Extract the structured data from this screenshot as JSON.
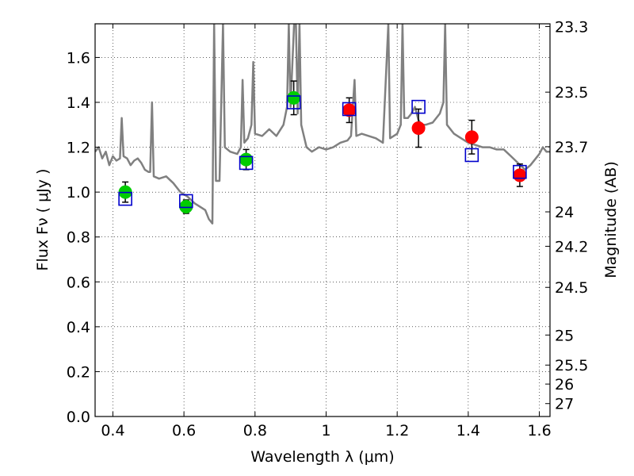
{
  "chart_data": {
    "type": "scatter",
    "xlabel": "Wavelength  λ (μm)",
    "ylabel": "Flux  Fν  ( μJy )",
    "y2label": "Magnitude (AB)",
    "xlim": [
      0.35,
      1.63
    ],
    "ylim": [
      0.0,
      1.75
    ],
    "grid": true,
    "x_ticks": [
      0.4,
      0.6,
      0.8,
      1.0,
      1.2,
      1.4,
      1.6
    ],
    "x_tick_labels": [
      "0.4",
      "0.6",
      "0.8",
      "1",
      "1.2",
      "1.4",
      "1.6"
    ],
    "y_ticks": [
      0.0,
      0.2,
      0.4,
      0.6,
      0.8,
      1.0,
      1.2,
      1.4,
      1.6
    ],
    "y_tick_labels": [
      "0.0",
      "0.2",
      "0.4",
      "0.6",
      "0.8",
      "1.0",
      "1.2",
      "1.4",
      "1.6"
    ],
    "y2_ticks": [
      23.3,
      23.5,
      23.7,
      24,
      24.2,
      24.5,
      25,
      25.5,
      26,
      27
    ],
    "y2_tick_labels": [
      "23.3",
      "23.5",
      "23.7",
      "24",
      "24.2",
      "24.5",
      "25",
      "25.5",
      "26",
      "27"
    ],
    "series": [
      {
        "marker": "circle",
        "color": "#00cc00",
        "points": [
          {
            "x": 0.435,
            "y": 1.0,
            "err": 0.045
          },
          {
            "x": 0.606,
            "y": 0.935,
            "err": 0.03
          },
          {
            "x": 0.775,
            "y": 1.145,
            "err": 0.045
          },
          {
            "x": 0.909,
            "y": 1.42,
            "err": 0.075
          }
        ]
      },
      {
        "marker": "circle",
        "color": "#ff0000",
        "points": [
          {
            "x": 1.065,
            "y": 1.365,
            "err": 0.055
          },
          {
            "x": 1.26,
            "y": 1.285,
            "err": 0.085
          },
          {
            "x": 1.41,
            "y": 1.245,
            "err": 0.075
          },
          {
            "x": 1.545,
            "y": 1.075,
            "err": 0.05
          }
        ]
      },
      {
        "marker": "square",
        "color": "#0000cc",
        "points": [
          {
            "x": 0.435,
            "y": 0.97
          },
          {
            "x": 0.606,
            "y": 0.96
          },
          {
            "x": 0.775,
            "y": 1.13
          },
          {
            "x": 0.909,
            "y": 1.4
          },
          {
            "x": 1.065,
            "y": 1.37
          },
          {
            "x": 1.26,
            "y": 1.38
          },
          {
            "x": 1.41,
            "y": 1.165
          },
          {
            "x": 1.545,
            "y": 1.09
          }
        ]
      },
      {
        "marker": "line",
        "color": "#808080",
        "points": [
          {
            "x": 0.35,
            "y": 1.18
          },
          {
            "x": 0.36,
            "y": 1.2
          },
          {
            "x": 0.37,
            "y": 1.15
          },
          {
            "x": 0.38,
            "y": 1.18
          },
          {
            "x": 0.39,
            "y": 1.12
          },
          {
            "x": 0.4,
            "y": 1.16
          },
          {
            "x": 0.41,
            "y": 1.14
          },
          {
            "x": 0.42,
            "y": 1.15
          },
          {
            "x": 0.425,
            "y": 1.33
          },
          {
            "x": 0.43,
            "y": 1.16
          },
          {
            "x": 0.44,
            "y": 1.15
          },
          {
            "x": 0.45,
            "y": 1.12
          },
          {
            "x": 0.46,
            "y": 1.14
          },
          {
            "x": 0.47,
            "y": 1.15
          },
          {
            "x": 0.48,
            "y": 1.13
          },
          {
            "x": 0.49,
            "y": 1.1
          },
          {
            "x": 0.5,
            "y": 1.09
          },
          {
            "x": 0.505,
            "y": 1.09
          },
          {
            "x": 0.51,
            "y": 1.4
          },
          {
            "x": 0.515,
            "y": 1.07
          },
          {
            "x": 0.53,
            "y": 1.06
          },
          {
            "x": 0.55,
            "y": 1.07
          },
          {
            "x": 0.57,
            "y": 1.04
          },
          {
            "x": 0.59,
            "y": 1.0
          },
          {
            "x": 0.61,
            "y": 0.98
          },
          {
            "x": 0.63,
            "y": 0.95
          },
          {
            "x": 0.65,
            "y": 0.93
          },
          {
            "x": 0.66,
            "y": 0.92
          },
          {
            "x": 0.67,
            "y": 0.88
          },
          {
            "x": 0.68,
            "y": 0.86
          },
          {
            "x": 0.685,
            "y": 1.75
          },
          {
            "x": 0.69,
            "y": 1.05
          },
          {
            "x": 0.7,
            "y": 1.05
          },
          {
            "x": 0.71,
            "y": 1.75
          },
          {
            "x": 0.715,
            "y": 1.2
          },
          {
            "x": 0.73,
            "y": 1.18
          },
          {
            "x": 0.75,
            "y": 1.17
          },
          {
            "x": 0.76,
            "y": 1.2
          },
          {
            "x": 0.765,
            "y": 1.5
          },
          {
            "x": 0.77,
            "y": 1.22
          },
          {
            "x": 0.78,
            "y": 1.24
          },
          {
            "x": 0.79,
            "y": 1.3
          },
          {
            "x": 0.795,
            "y": 1.58
          },
          {
            "x": 0.8,
            "y": 1.26
          },
          {
            "x": 0.82,
            "y": 1.25
          },
          {
            "x": 0.84,
            "y": 1.28
          },
          {
            "x": 0.86,
            "y": 1.25
          },
          {
            "x": 0.88,
            "y": 1.3
          },
          {
            "x": 0.89,
            "y": 1.38
          },
          {
            "x": 0.895,
            "y": 1.75
          },
          {
            "x": 0.9,
            "y": 1.38
          },
          {
            "x": 0.91,
            "y": 1.75
          },
          {
            "x": 0.915,
            "y": 1.75
          },
          {
            "x": 0.92,
            "y": 1.35
          },
          {
            "x": 0.925,
            "y": 1.75
          },
          {
            "x": 0.93,
            "y": 1.3
          },
          {
            "x": 0.945,
            "y": 1.2
          },
          {
            "x": 0.96,
            "y": 1.18
          },
          {
            "x": 0.98,
            "y": 1.2
          },
          {
            "x": 1.0,
            "y": 1.19
          },
          {
            "x": 1.02,
            "y": 1.2
          },
          {
            "x": 1.04,
            "y": 1.22
          },
          {
            "x": 1.06,
            "y": 1.23
          },
          {
            "x": 1.07,
            "y": 1.25
          },
          {
            "x": 1.08,
            "y": 1.5
          },
          {
            "x": 1.085,
            "y": 1.25
          },
          {
            "x": 1.1,
            "y": 1.26
          },
          {
            "x": 1.12,
            "y": 1.25
          },
          {
            "x": 1.14,
            "y": 1.24
          },
          {
            "x": 1.16,
            "y": 1.22
          },
          {
            "x": 1.175,
            "y": 1.75
          },
          {
            "x": 1.18,
            "y": 1.24
          },
          {
            "x": 1.2,
            "y": 1.26
          },
          {
            "x": 1.21,
            "y": 1.3
          },
          {
            "x": 1.215,
            "y": 1.75
          },
          {
            "x": 1.22,
            "y": 1.33
          },
          {
            "x": 1.23,
            "y": 1.33
          },
          {
            "x": 1.24,
            "y": 1.35
          },
          {
            "x": 1.25,
            "y": 1.38
          },
          {
            "x": 1.26,
            "y": 1.32
          },
          {
            "x": 1.27,
            "y": 1.3
          },
          {
            "x": 1.28,
            "y": 1.3
          },
          {
            "x": 1.3,
            "y": 1.31
          },
          {
            "x": 1.32,
            "y": 1.35
          },
          {
            "x": 1.33,
            "y": 1.4
          },
          {
            "x": 1.335,
            "y": 1.75
          },
          {
            "x": 1.34,
            "y": 1.3
          },
          {
            "x": 1.36,
            "y": 1.26
          },
          {
            "x": 1.38,
            "y": 1.24
          },
          {
            "x": 1.4,
            "y": 1.22
          },
          {
            "x": 1.42,
            "y": 1.21
          },
          {
            "x": 1.44,
            "y": 1.2
          },
          {
            "x": 1.46,
            "y": 1.2
          },
          {
            "x": 1.48,
            "y": 1.19
          },
          {
            "x": 1.5,
            "y": 1.19
          },
          {
            "x": 1.52,
            "y": 1.16
          },
          {
            "x": 1.54,
            "y": 1.13
          },
          {
            "x": 1.56,
            "y": 1.1
          },
          {
            "x": 1.575,
            "y": 1.12
          },
          {
            "x": 1.59,
            "y": 1.15
          },
          {
            "x": 1.6,
            "y": 1.17
          },
          {
            "x": 1.61,
            "y": 1.2
          },
          {
            "x": 1.62,
            "y": 1.18
          },
          {
            "x": 1.63,
            "y": 1.18
          }
        ]
      }
    ]
  }
}
